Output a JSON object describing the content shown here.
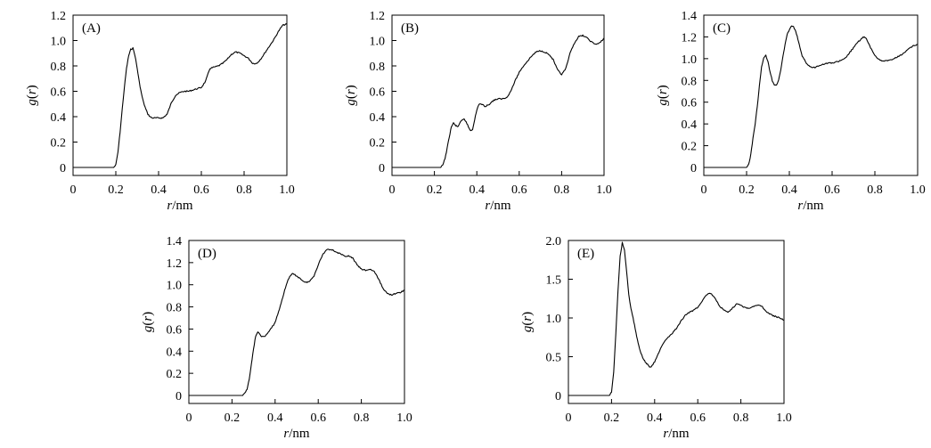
{
  "chart_data": [
    {
      "type": "line",
      "panel_label": "(A)",
      "xlabel": "r/nm",
      "ylabel": "g(r)",
      "xlim": [
        0,
        1.0
      ],
      "ylim": [
        0,
        1.2
      ],
      "xticks": [
        0,
        0.2,
        0.4,
        0.6,
        0.8,
        1.0
      ],
      "xtick_labels": [
        "0",
        "0.2",
        "0.4",
        "0.6",
        "0.8",
        "1.0"
      ],
      "yticks": [
        0,
        0.2,
        0.4,
        0.6,
        0.8,
        1.0,
        1.2
      ],
      "ytick_labels": [
        "0",
        "0.2",
        "0.4",
        "0.6",
        "0.8",
        "1.0",
        "1.2"
      ],
      "grid": false,
      "series": [
        {
          "x": [
            0,
            0.19,
            0.2,
            0.21,
            0.22,
            0.23,
            0.24,
            0.25,
            0.26,
            0.27,
            0.28,
            0.29,
            0.3,
            0.31,
            0.32,
            0.33,
            0.34,
            0.35,
            0.36,
            0.37,
            0.38,
            0.4,
            0.42,
            0.44,
            0.46,
            0.48,
            0.5,
            0.52,
            0.54,
            0.56,
            0.58,
            0.6,
            0.62,
            0.64,
            0.66,
            0.68,
            0.7,
            0.72,
            0.74,
            0.76,
            0.78,
            0.8,
            0.82,
            0.84,
            0.86,
            0.88,
            0.9,
            0.92,
            0.94,
            0.96,
            0.98,
            1.0
          ],
          "y": [
            0,
            0,
            0.02,
            0.12,
            0.28,
            0.46,
            0.63,
            0.78,
            0.88,
            0.93,
            0.94,
            0.88,
            0.78,
            0.67,
            0.58,
            0.51,
            0.46,
            0.42,
            0.4,
            0.39,
            0.39,
            0.39,
            0.39,
            0.42,
            0.51,
            0.57,
            0.59,
            0.6,
            0.6,
            0.61,
            0.62,
            0.63,
            0.68,
            0.78,
            0.79,
            0.8,
            0.82,
            0.85,
            0.89,
            0.91,
            0.9,
            0.88,
            0.86,
            0.82,
            0.82,
            0.86,
            0.91,
            0.96,
            1.01,
            1.07,
            1.12,
            1.13
          ]
        }
      ]
    },
    {
      "type": "line",
      "panel_label": "(B)",
      "xlabel": "r/nm",
      "ylabel": "g(r)",
      "xlim": [
        0,
        1.0
      ],
      "ylim": [
        0,
        1.2
      ],
      "xticks": [
        0,
        0.2,
        0.4,
        0.6,
        0.8,
        1.0
      ],
      "xtick_labels": [
        "0",
        "0.2",
        "0.4",
        "0.6",
        "0.8",
        "1.0"
      ],
      "yticks": [
        0,
        0.2,
        0.4,
        0.6,
        0.8,
        1.0,
        1.2
      ],
      "ytick_labels": [
        "0",
        "0.2",
        "0.4",
        "0.6",
        "0.8",
        "1.0",
        "1.2"
      ],
      "grid": false,
      "series": [
        {
          "x": [
            0,
            0.23,
            0.24,
            0.25,
            0.26,
            0.27,
            0.28,
            0.29,
            0.3,
            0.31,
            0.32,
            0.33,
            0.34,
            0.35,
            0.36,
            0.37,
            0.38,
            0.39,
            0.4,
            0.41,
            0.42,
            0.43,
            0.44,
            0.46,
            0.48,
            0.5,
            0.52,
            0.54,
            0.56,
            0.58,
            0.6,
            0.62,
            0.64,
            0.66,
            0.68,
            0.7,
            0.72,
            0.74,
            0.76,
            0.78,
            0.8,
            0.82,
            0.84,
            0.86,
            0.88,
            0.9,
            0.92,
            0.94,
            0.96,
            0.98,
            1.0
          ],
          "y": [
            0,
            0,
            0.02,
            0.07,
            0.15,
            0.24,
            0.32,
            0.35,
            0.33,
            0.32,
            0.35,
            0.37,
            0.38,
            0.36,
            0.32,
            0.29,
            0.3,
            0.38,
            0.45,
            0.5,
            0.5,
            0.49,
            0.48,
            0.5,
            0.53,
            0.54,
            0.54,
            0.55,
            0.6,
            0.68,
            0.75,
            0.8,
            0.84,
            0.88,
            0.91,
            0.92,
            0.91,
            0.89,
            0.85,
            0.77,
            0.73,
            0.78,
            0.9,
            0.98,
            1.03,
            1.04,
            1.02,
            0.99,
            0.97,
            0.98,
            1.02
          ]
        }
      ]
    },
    {
      "type": "line",
      "panel_label": "(C)",
      "xlabel": "r/nm",
      "ylabel": "g(r)",
      "xlim": [
        0,
        1.0
      ],
      "ylim": [
        0,
        1.4
      ],
      "xticks": [
        0,
        0.2,
        0.4,
        0.6,
        0.8,
        1.0
      ],
      "xtick_labels": [
        "0",
        "0.2",
        "0.4",
        "0.6",
        "0.8",
        "1.0"
      ],
      "yticks": [
        0,
        0.2,
        0.4,
        0.6,
        0.8,
        1.0,
        1.2,
        1.4
      ],
      "ytick_labels": [
        "0",
        "0.2",
        "0.4",
        "0.6",
        "0.8",
        "1.0",
        "1.2",
        "1.4"
      ],
      "grid": false,
      "series": [
        {
          "x": [
            0,
            0.2,
            0.21,
            0.22,
            0.23,
            0.24,
            0.25,
            0.26,
            0.27,
            0.28,
            0.29,
            0.3,
            0.31,
            0.32,
            0.33,
            0.34,
            0.35,
            0.36,
            0.37,
            0.38,
            0.39,
            0.4,
            0.41,
            0.42,
            0.43,
            0.44,
            0.45,
            0.46,
            0.48,
            0.5,
            0.52,
            0.54,
            0.56,
            0.58,
            0.6,
            0.62,
            0.64,
            0.66,
            0.68,
            0.7,
            0.72,
            0.74,
            0.75,
            0.76,
            0.78,
            0.8,
            0.82,
            0.84,
            0.86,
            0.88,
            0.9,
            0.92,
            0.94,
            0.96,
            0.98,
            1.0
          ],
          "y": [
            0,
            0,
            0.03,
            0.12,
            0.27,
            0.4,
            0.56,
            0.75,
            0.92,
            1.01,
            1.03,
            0.97,
            0.88,
            0.8,
            0.76,
            0.76,
            0.8,
            0.9,
            1.02,
            1.13,
            1.22,
            1.27,
            1.3,
            1.29,
            1.25,
            1.18,
            1.1,
            1.02,
            0.96,
            0.92,
            0.92,
            0.94,
            0.95,
            0.96,
            0.96,
            0.97,
            0.98,
            1.0,
            1.05,
            1.1,
            1.15,
            1.19,
            1.2,
            1.18,
            1.1,
            1.03,
            0.99,
            0.98,
            0.98,
            0.99,
            1.01,
            1.03,
            1.06,
            1.09,
            1.12,
            1.13
          ]
        }
      ]
    },
    {
      "type": "line",
      "panel_label": "(D)",
      "xlabel": "r/nm",
      "ylabel": "g(r)",
      "xlim": [
        0,
        1.0
      ],
      "ylim": [
        0,
        1.4
      ],
      "xticks": [
        0,
        0.2,
        0.4,
        0.6,
        0.8,
        1.0
      ],
      "xtick_labels": [
        "0",
        "0.2",
        "0.4",
        "0.6",
        "0.8",
        "1.0"
      ],
      "yticks": [
        0,
        0.2,
        0.4,
        0.6,
        0.8,
        1.0,
        1.2,
        1.4
      ],
      "ytick_labels": [
        "0",
        "0.2",
        "0.4",
        "0.6",
        "0.8",
        "1.0",
        "1.2",
        "1.4"
      ],
      "grid": false,
      "series": [
        {
          "x": [
            0,
            0.25,
            0.26,
            0.27,
            0.28,
            0.29,
            0.3,
            0.31,
            0.32,
            0.33,
            0.34,
            0.35,
            0.36,
            0.38,
            0.4,
            0.42,
            0.44,
            0.46,
            0.48,
            0.5,
            0.52,
            0.54,
            0.56,
            0.58,
            0.6,
            0.62,
            0.64,
            0.66,
            0.68,
            0.7,
            0.72,
            0.74,
            0.76,
            0.78,
            0.8,
            0.82,
            0.84,
            0.86,
            0.88,
            0.9,
            0.92,
            0.94,
            0.96,
            0.98,
            1.0
          ],
          "y": [
            0,
            0,
            0.02,
            0.06,
            0.15,
            0.28,
            0.42,
            0.54,
            0.57,
            0.55,
            0.53,
            0.53,
            0.55,
            0.6,
            0.66,
            0.78,
            0.92,
            1.05,
            1.1,
            1.08,
            1.05,
            1.02,
            1.03,
            1.08,
            1.18,
            1.27,
            1.32,
            1.32,
            1.3,
            1.28,
            1.26,
            1.26,
            1.24,
            1.18,
            1.14,
            1.13,
            1.14,
            1.12,
            1.05,
            0.97,
            0.92,
            0.91,
            0.92,
            0.93,
            0.95
          ]
        }
      ]
    },
    {
      "type": "line",
      "panel_label": "(E)",
      "xlabel": "r/nm",
      "ylabel": "g(r)",
      "xlim": [
        0,
        1.0
      ],
      "ylim": [
        0,
        2.0
      ],
      "xticks": [
        0,
        0.2,
        0.4,
        0.6,
        0.8,
        1.0
      ],
      "xtick_labels": [
        "0",
        "0.2",
        "0.4",
        "0.6",
        "0.8",
        "1.0"
      ],
      "yticks": [
        0,
        0.5,
        1.0,
        1.5,
        2.0
      ],
      "ytick_labels": [
        "0",
        "0.5",
        "1.0",
        "1.5",
        "2.0"
      ],
      "grid": false,
      "series": [
        {
          "x": [
            0,
            0.19,
            0.2,
            0.21,
            0.22,
            0.23,
            0.24,
            0.25,
            0.26,
            0.27,
            0.28,
            0.29,
            0.3,
            0.31,
            0.32,
            0.33,
            0.34,
            0.35,
            0.36,
            0.37,
            0.38,
            0.4,
            0.42,
            0.44,
            0.46,
            0.48,
            0.5,
            0.52,
            0.54,
            0.56,
            0.58,
            0.6,
            0.62,
            0.64,
            0.66,
            0.68,
            0.7,
            0.72,
            0.74,
            0.76,
            0.78,
            0.8,
            0.82,
            0.84,
            0.86,
            0.88,
            0.9,
            0.92,
            0.94,
            0.96,
            0.98,
            1.0
          ],
          "y": [
            0,
            0,
            0.04,
            0.3,
            0.8,
            1.35,
            1.8,
            1.97,
            1.88,
            1.6,
            1.3,
            1.12,
            1.0,
            0.86,
            0.72,
            0.6,
            0.52,
            0.46,
            0.42,
            0.39,
            0.36,
            0.43,
            0.56,
            0.67,
            0.74,
            0.8,
            0.86,
            0.95,
            1.03,
            1.07,
            1.1,
            1.14,
            1.22,
            1.3,
            1.32,
            1.25,
            1.16,
            1.1,
            1.07,
            1.12,
            1.18,
            1.17,
            1.13,
            1.13,
            1.15,
            1.17,
            1.14,
            1.08,
            1.04,
            1.02,
            1.0,
            0.97
          ]
        }
      ]
    }
  ]
}
